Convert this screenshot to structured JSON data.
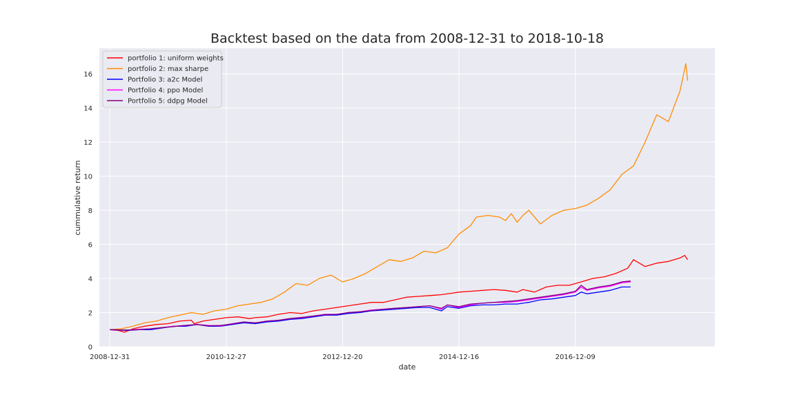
{
  "colors": {
    "plot_background": "#eaeaf2",
    "grid": "#ffffff",
    "legend_background": "#eaeaf2",
    "legend_border": "#cccccc"
  },
  "chart_data": {
    "type": "line",
    "title": "Backtest based on the data from 2008-12-31 to 2018-10-18",
    "xlabel": "date",
    "ylabel": "cummulative return",
    "xlim": [
      -0.18,
      10.4
    ],
    "ylim": [
      0,
      17.5
    ],
    "x_ticks": [
      {
        "pos": 0,
        "label": "2008-12-31"
      },
      {
        "pos": 2,
        "label": "2010-12-27"
      },
      {
        "pos": 4,
        "label": "2012-12-20"
      },
      {
        "pos": 6,
        "label": "2014-12-16"
      },
      {
        "pos": 8,
        "label": "2016-12-09"
      }
    ],
    "y_ticks": [
      0,
      2,
      4,
      6,
      8,
      10,
      12,
      14,
      16
    ],
    "grid": true,
    "legend_position": "top-left",
    "series": [
      {
        "name": "portfolio 1: uniform weights",
        "color": "#ff0000",
        "x": [
          0,
          0.15,
          0.25,
          0.4,
          0.6,
          0.8,
          1.0,
          1.2,
          1.4,
          1.45,
          1.6,
          1.8,
          2.0,
          2.2,
          2.4,
          2.5,
          2.7,
          2.9,
          3.1,
          3.3,
          3.5,
          3.7,
          3.9,
          4.1,
          4.3,
          4.5,
          4.7,
          4.9,
          5.1,
          5.3,
          5.5,
          5.7,
          5.9,
          6.0,
          6.2,
          6.4,
          6.6,
          6.8,
          7.0,
          7.1,
          7.3,
          7.5,
          7.7,
          7.9,
          8.1,
          8.3,
          8.5,
          8.7,
          8.9,
          9.0,
          9.2,
          9.4,
          9.6,
          9.8,
          9.88,
          9.93
        ],
        "y": [
          1.0,
          0.95,
          0.85,
          1.05,
          1.2,
          1.3,
          1.35,
          1.5,
          1.55,
          1.35,
          1.5,
          1.6,
          1.7,
          1.75,
          1.65,
          1.7,
          1.75,
          1.9,
          2.0,
          1.95,
          2.1,
          2.2,
          2.3,
          2.4,
          2.5,
          2.6,
          2.6,
          2.75,
          2.9,
          2.95,
          3.0,
          3.05,
          3.15,
          3.2,
          3.25,
          3.3,
          3.35,
          3.3,
          3.2,
          3.35,
          3.2,
          3.5,
          3.6,
          3.6,
          3.8,
          4.0,
          4.1,
          4.3,
          4.6,
          5.1,
          4.7,
          4.9,
          5.0,
          5.2,
          5.35,
          5.1
        ]
      },
      {
        "name": "portfolio 2: max sharpe",
        "color": "#ff8c00",
        "x": [
          0,
          0.2,
          0.4,
          0.6,
          0.8,
          1.0,
          1.2,
          1.4,
          1.6,
          1.8,
          2.0,
          2.2,
          2.4,
          2.6,
          2.8,
          3.0,
          3.2,
          3.4,
          3.6,
          3.8,
          4.0,
          4.2,
          4.4,
          4.6,
          4.8,
          5.0,
          5.2,
          5.4,
          5.6,
          5.8,
          6.0,
          6.2,
          6.3,
          6.5,
          6.7,
          6.8,
          6.9,
          7.0,
          7.1,
          7.2,
          7.4,
          7.6,
          7.8,
          8.0,
          8.2,
          8.4,
          8.6,
          8.8,
          9.0,
          9.1,
          9.2,
          9.4,
          9.6,
          9.8,
          9.9,
          9.93
        ],
        "y": [
          1.0,
          1.05,
          1.2,
          1.4,
          1.5,
          1.7,
          1.85,
          2.0,
          1.9,
          2.1,
          2.2,
          2.4,
          2.5,
          2.6,
          2.8,
          3.2,
          3.7,
          3.6,
          4.0,
          4.2,
          3.8,
          4.0,
          4.3,
          4.7,
          5.1,
          5.0,
          5.2,
          5.6,
          5.5,
          5.8,
          6.6,
          7.1,
          7.6,
          7.7,
          7.6,
          7.4,
          7.8,
          7.3,
          7.7,
          8.0,
          7.2,
          7.7,
          8.0,
          8.1,
          8.3,
          8.7,
          9.2,
          10.1,
          10.6,
          11.3,
          12.0,
          13.6,
          13.2,
          15.0,
          16.6,
          15.6
        ]
      },
      {
        "name": "Portfolio 3: a2c Model",
        "color": "#0000ff",
        "x": [
          0,
          0.3,
          0.5,
          0.7,
          0.9,
          1.1,
          1.3,
          1.5,
          1.7,
          1.9,
          2.1,
          2.3,
          2.5,
          2.7,
          2.9,
          3.1,
          3.3,
          3.5,
          3.7,
          3.9,
          4.1,
          4.3,
          4.5,
          4.7,
          4.9,
          5.1,
          5.3,
          5.5,
          5.7,
          5.8,
          6.0,
          6.2,
          6.4,
          6.6,
          6.8,
          7.0,
          7.2,
          7.4,
          7.6,
          7.8,
          8.0,
          8.1,
          8.2,
          8.4,
          8.6,
          8.8,
          8.95
        ],
        "y": [
          1.0,
          0.95,
          1.0,
          1.0,
          1.1,
          1.2,
          1.2,
          1.3,
          1.2,
          1.2,
          1.3,
          1.4,
          1.35,
          1.45,
          1.5,
          1.6,
          1.65,
          1.75,
          1.85,
          1.85,
          1.95,
          2.0,
          2.1,
          2.15,
          2.2,
          2.25,
          2.3,
          2.3,
          2.1,
          2.35,
          2.25,
          2.4,
          2.45,
          2.45,
          2.5,
          2.5,
          2.6,
          2.75,
          2.8,
          2.9,
          3.0,
          3.2,
          3.1,
          3.2,
          3.3,
          3.5,
          3.5
        ]
      },
      {
        "name": "Portfolio 4: ppo Model",
        "color": "#ff00ff",
        "x": [
          0,
          0.3,
          0.5,
          0.7,
          0.9,
          1.1,
          1.3,
          1.5,
          1.7,
          1.9,
          2.1,
          2.3,
          2.5,
          2.7,
          2.9,
          3.1,
          3.3,
          3.5,
          3.7,
          3.9,
          4.1,
          4.3,
          4.5,
          4.7,
          4.9,
          5.1,
          5.3,
          5.5,
          5.7,
          5.8,
          6.0,
          6.2,
          6.4,
          6.6,
          6.8,
          7.0,
          7.2,
          7.4,
          7.6,
          7.8,
          8.0,
          8.1,
          8.2,
          8.4,
          8.6,
          8.8,
          8.95
        ],
        "y": [
          1.0,
          0.97,
          1.02,
          1.05,
          1.12,
          1.2,
          1.25,
          1.3,
          1.25,
          1.22,
          1.35,
          1.45,
          1.4,
          1.5,
          1.55,
          1.65,
          1.7,
          1.8,
          1.9,
          1.9,
          2.0,
          2.05,
          2.15,
          2.2,
          2.25,
          2.3,
          2.35,
          2.4,
          2.2,
          2.45,
          2.3,
          2.45,
          2.55,
          2.6,
          2.6,
          2.65,
          2.75,
          2.85,
          2.95,
          3.05,
          3.2,
          3.5,
          3.3,
          3.45,
          3.55,
          3.75,
          3.8
        ]
      },
      {
        "name": "Portfolio 5: ddpg Model",
        "color": "#800080",
        "x": [
          0,
          0.3,
          0.5,
          0.7,
          0.9,
          1.1,
          1.3,
          1.5,
          1.7,
          1.9,
          2.1,
          2.3,
          2.5,
          2.7,
          2.9,
          3.1,
          3.3,
          3.5,
          3.7,
          3.9,
          4.1,
          4.3,
          4.5,
          4.7,
          4.9,
          5.1,
          5.3,
          5.5,
          5.7,
          5.8,
          6.0,
          6.2,
          6.4,
          6.6,
          6.8,
          7.0,
          7.2,
          7.4,
          7.6,
          7.8,
          8.0,
          8.1,
          8.2,
          8.4,
          8.6,
          8.8,
          8.95
        ],
        "y": [
          1.0,
          0.98,
          1.0,
          1.05,
          1.12,
          1.18,
          1.25,
          1.3,
          1.22,
          1.25,
          1.33,
          1.45,
          1.4,
          1.5,
          1.55,
          1.65,
          1.72,
          1.8,
          1.88,
          1.9,
          2.0,
          2.05,
          2.12,
          2.2,
          2.25,
          2.3,
          2.35,
          2.4,
          2.25,
          2.45,
          2.35,
          2.5,
          2.55,
          2.6,
          2.65,
          2.7,
          2.8,
          2.9,
          3.0,
          3.1,
          3.25,
          3.6,
          3.35,
          3.5,
          3.6,
          3.8,
          3.85
        ]
      }
    ]
  }
}
